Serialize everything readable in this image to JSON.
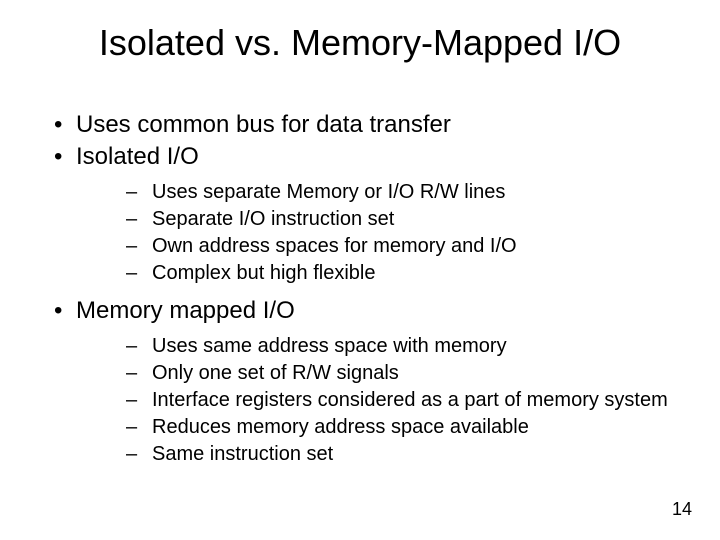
{
  "background_color": "#ffffff",
  "text_color": "#000000",
  "font_family": "Arial",
  "title": {
    "text": "Isolated vs. Memory-Mapped I/O",
    "fontsize": 36
  },
  "outline": [
    {
      "text": "Uses common bus for data transfer",
      "children": []
    },
    {
      "text": "Isolated I/O",
      "children": [
        {
          "text": "Uses separate Memory or I/O R/W lines"
        },
        {
          "text": "Separate I/O instruction set"
        },
        {
          "text": "Own address spaces for memory and I/O"
        },
        {
          "text": "Complex but high flexible"
        }
      ]
    },
    {
      "text": "Memory mapped I/O",
      "children": [
        {
          "text": "Uses same address space with memory"
        },
        {
          "text": "Only one set of R/W signals"
        },
        {
          "text": "Interface registers considered as a part of memory system"
        },
        {
          "text": "Reduces memory address space available"
        },
        {
          "text": "Same instruction set"
        }
      ]
    }
  ],
  "level1_fontsize": 24,
  "level2_fontsize": 20,
  "page_number": "14",
  "page_number_fontsize": 18
}
